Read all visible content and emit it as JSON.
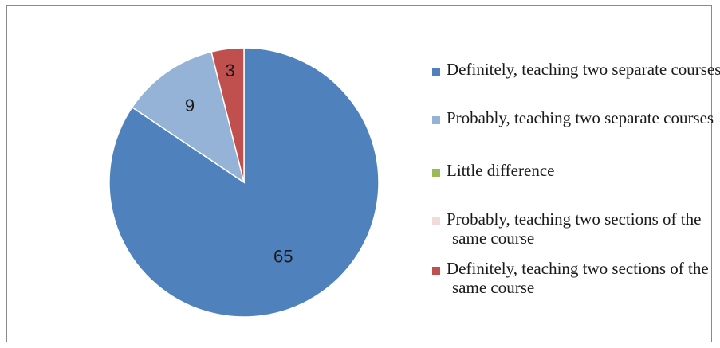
{
  "chart_data": {
    "type": "pie",
    "title": "",
    "series": [
      {
        "values": [
          65,
          9,
          0,
          0,
          3
        ]
      }
    ],
    "categories": [
      "Definitely, teaching two separate courses",
      "Probably, teaching two separate courses",
      "Little difference",
      "Probably, teaching two sections of the same course",
      "Definitely, teaching two sections of the same course"
    ],
    "data_labels": [
      "65",
      "9",
      "",
      "",
      "3"
    ],
    "colors": [
      "#4f81bd",
      "#95b3d7",
      "#9bbb59",
      "#f2dcdb",
      "#c0504d"
    ],
    "legend_position": "right",
    "start_angle_deg": 0,
    "direction": "clockwise"
  },
  "legend": {
    "items": [
      {
        "label": "Definitely, teaching two separate courses"
      },
      {
        "label": "Probably, teaching two separate courses"
      },
      {
        "label": "Little difference"
      },
      {
        "label": "Probably, teaching two sections of the same course"
      },
      {
        "label": "Definitely, teaching two sections of the same course"
      }
    ]
  }
}
